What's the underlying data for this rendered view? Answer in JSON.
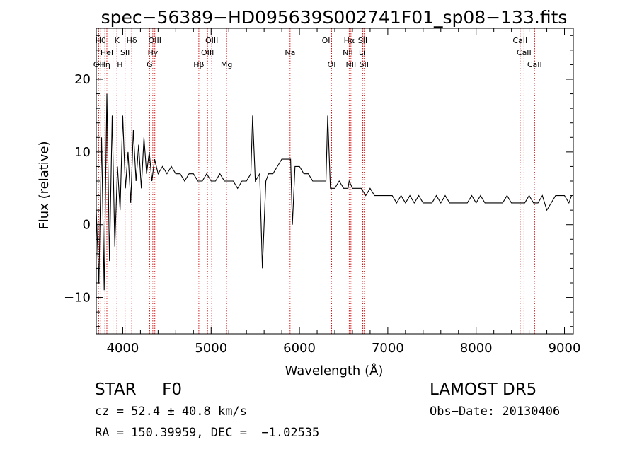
{
  "chart_data": {
    "type": "line",
    "title": "spec−56389−HD095639S002741F01_sp08−133.fits",
    "xlabel": "Wavelength (Å)",
    "ylabel": "Flux (relative)",
    "xlim": [
      3700,
      9100
    ],
    "ylim": [
      -15,
      27
    ],
    "xticks": [
      4000,
      5000,
      6000,
      7000,
      8000,
      9000
    ],
    "xtick_labels": [
      "4000",
      "5000",
      "6000",
      "7000",
      "8000",
      "9000"
    ],
    "yticks": [
      -10,
      0,
      10,
      20
    ],
    "ytick_labels": [
      "−10",
      "0",
      "10",
      "20"
    ],
    "grid": false,
    "line_color": "#000000",
    "marker_color": "#cc0000",
    "series": [
      {
        "x": [
          3700,
          3730,
          3760,
          3790,
          3820,
          3850,
          3880,
          3910,
          3940,
          3970,
          4000,
          4030,
          4060,
          4090,
          4120,
          4150,
          4180,
          4210,
          4240,
          4270,
          4300,
          4330,
          4360,
          4400,
          4450,
          4500,
          4550,
          4600,
          4650,
          4700,
          4750,
          4800,
          4850,
          4900,
          4950,
          5000,
          5050,
          5100,
          5150,
          5200,
          5250,
          5300,
          5350,
          5400,
          5450,
          5470,
          5500,
          5550,
          5580,
          5620,
          5650,
          5700,
          5750,
          5800,
          5850,
          5900,
          5920,
          5950,
          6000,
          6050,
          6100,
          6150,
          6200,
          6250,
          6300,
          6320,
          6350,
          6400,
          6450,
          6500,
          6550,
          6563,
          6600,
          6650,
          6700,
          6750,
          6800,
          6850,
          6900,
          6950,
          7000,
          7050,
          7100,
          7150,
          7200,
          7250,
          7300,
          7350,
          7400,
          7450,
          7500,
          7550,
          7600,
          7650,
          7700,
          7750,
          7800,
          7850,
          7900,
          7950,
          8000,
          8050,
          8100,
          8150,
          8200,
          8250,
          8300,
          8350,
          8400,
          8450,
          8500,
          8550,
          8600,
          8650,
          8700,
          8750,
          8800,
          8850,
          8900,
          8950,
          9000,
          9050,
          9080
        ],
        "y": [
          2,
          -8,
          12,
          -9,
          18,
          -5,
          15,
          -3,
          8,
          2,
          15,
          5,
          10,
          3,
          13,
          6,
          11,
          5,
          12,
          7,
          10,
          6,
          9,
          7,
          8,
          7,
          8,
          7,
          7,
          6,
          7,
          7,
          6,
          6,
          7,
          6,
          6,
          7,
          6,
          6,
          6,
          5,
          6,
          6,
          7,
          15,
          6,
          7,
          -6,
          6,
          7,
          7,
          8,
          9,
          9,
          9,
          0,
          8,
          8,
          7,
          7,
          6,
          6,
          6,
          6,
          15,
          5,
          5,
          6,
          5,
          5,
          6,
          5,
          5,
          5,
          4,
          5,
          4,
          4,
          4,
          4,
          4,
          3,
          4,
          3,
          4,
          3,
          4,
          3,
          3,
          3,
          4,
          3,
          4,
          3,
          3,
          3,
          3,
          3,
          4,
          3,
          4,
          3,
          3,
          3,
          3,
          3,
          4,
          3,
          3,
          3,
          3,
          4,
          3,
          3,
          4,
          2,
          3,
          4,
          4,
          4,
          3,
          4
        ]
      }
    ],
    "lines": [
      {
        "wave": 3727,
        "labels": [
          "OII"
        ],
        "row": 2
      },
      {
        "wave": 3750,
        "labels": [
          "Hθ"
        ],
        "row": 0
      },
      {
        "wave": 3798,
        "labels": [
          "Hη"
        ],
        "row": 2
      },
      {
        "wave": 3820,
        "labels": [
          "HeI"
        ],
        "row": 1
      },
      {
        "wave": 3889,
        "labels": [],
        "row": 0
      },
      {
        "wave": 3934,
        "labels": [
          "K"
        ],
        "row": 0
      },
      {
        "wave": 3968,
        "labels": [
          "H"
        ],
        "row": 2
      },
      {
        "wave": 4026,
        "labels": [
          "SII"
        ],
        "row": 1
      },
      {
        "wave": 4102,
        "labels": [
          "Hδ"
        ],
        "row": 0
      },
      {
        "wave": 4304,
        "labels": [
          "G"
        ],
        "row": 2
      },
      {
        "wave": 4340,
        "labels": [
          "Hγ"
        ],
        "row": 1
      },
      {
        "wave": 4363,
        "labels": [
          "OIII"
        ],
        "row": 0
      },
      {
        "wave": 4861,
        "labels": [
          "Hβ"
        ],
        "row": 2
      },
      {
        "wave": 4959,
        "labels": [
          "OIII"
        ],
        "row": 1
      },
      {
        "wave": 5007,
        "labels": [
          "OIII"
        ],
        "row": 0
      },
      {
        "wave": 5175,
        "labels": [
          "Mg"
        ],
        "row": 2
      },
      {
        "wave": 5894,
        "labels": [
          "Na"
        ],
        "row": 1
      },
      {
        "wave": 6300,
        "labels": [
          "OI"
        ],
        "row": 0
      },
      {
        "wave": 6364,
        "labels": [
          "OI"
        ],
        "row": 2
      },
      {
        "wave": 6548,
        "labels": [
          "NII"
        ],
        "row": 1
      },
      {
        "wave": 6563,
        "labels": [
          "Hα"
        ],
        "row": 0
      },
      {
        "wave": 6583,
        "labels": [
          "NII"
        ],
        "row": 2
      },
      {
        "wave": 6708,
        "labels": [
          "Li"
        ],
        "row": 1
      },
      {
        "wave": 6716,
        "labels": [
          "SII"
        ],
        "row": 0
      },
      {
        "wave": 6731,
        "labels": [
          "SII"
        ],
        "row": 2
      },
      {
        "wave": 8498,
        "labels": [
          "CaII"
        ],
        "row": 0
      },
      {
        "wave": 8542,
        "labels": [
          "CaII"
        ],
        "row": 1
      },
      {
        "wave": 8662,
        "labels": [
          "CaII"
        ],
        "row": 2
      }
    ]
  },
  "info": {
    "class": "STAR     F0",
    "cz": "cz = 52.4 ± 40.8 km/s",
    "radec": "RA = 150.39959, DEC =  −1.02535",
    "survey": "LAMOST DR5",
    "obs_date": "Obs−Date: 20130406"
  }
}
